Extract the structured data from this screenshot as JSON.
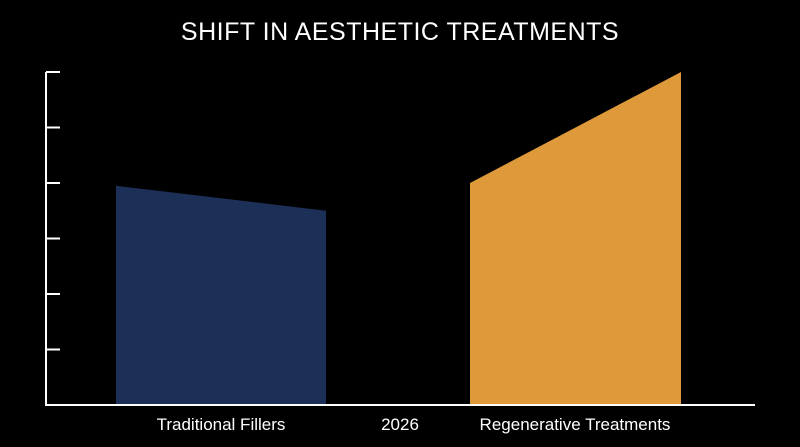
{
  "chart_data": {
    "type": "area",
    "title": "SHIFT IN AESTHETIC TREATMENTS",
    "xlabel": "",
    "ylabel": "",
    "x_tick_label": "2026",
    "ylim": [
      0,
      6
    ],
    "y_ticks": [
      0,
      1,
      2,
      3,
      4,
      5,
      6
    ],
    "y_tick_labels_shown": false,
    "grid": false,
    "legend": "none",
    "series": [
      {
        "name": "Traditional Fillers",
        "start": 3.95,
        "end": 3.5,
        "color": "#1b2f57"
      },
      {
        "name": "Regenerative Treatments",
        "start": 4.0,
        "end": 6.0,
        "color": "#de9a3a"
      }
    ]
  }
}
